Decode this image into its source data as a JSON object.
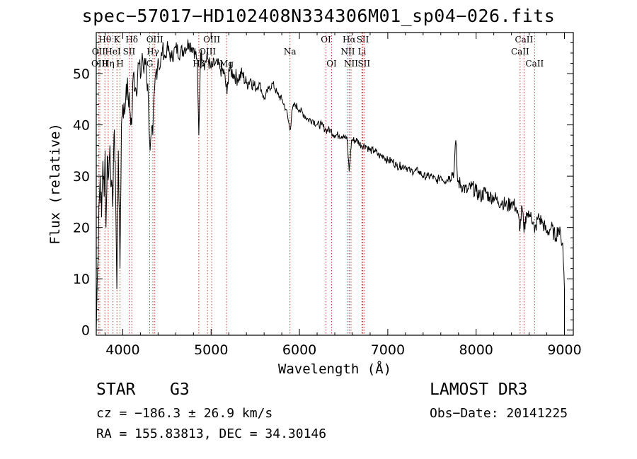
{
  "title": "spec−57017−HD102408N334306M01_sp04−026.fits",
  "info": {
    "class": "STAR",
    "subclass": "G3",
    "survey": "LAMOST DR3",
    "cz": "cz = −186.3 ± 26.9 km/s",
    "obsdate": "Obs−Date: 20141225",
    "radec": "RA = 155.83813, DEC =  34.30146"
  },
  "chart_data": {
    "type": "line",
    "title": "spec−57017−HD102408N334306M01_sp04−026.fits",
    "xlabel": "Wavelength (Å)",
    "ylabel": "Flux (relative)",
    "xlim": [
      3700,
      9100
    ],
    "ylim": [
      -1,
      58
    ],
    "xticks": [
      4000,
      5000,
      6000,
      7000,
      8000,
      9000
    ],
    "yticks": [
      0,
      10,
      20,
      30,
      40,
      50
    ],
    "series": [
      {
        "name": "flux",
        "points": [
          [
            3700,
            0
          ],
          [
            3715,
            12
          ],
          [
            3730,
            24
          ],
          [
            3745,
            30
          ],
          [
            3760,
            22
          ],
          [
            3775,
            33
          ],
          [
            3790,
            26
          ],
          [
            3800,
            35
          ],
          [
            3810,
            20
          ],
          [
            3825,
            34
          ],
          [
            3840,
            30
          ],
          [
            3855,
            36
          ],
          [
            3870,
            28
          ],
          [
            3885,
            24
          ],
          [
            3900,
            38
          ],
          [
            3915,
            33
          ],
          [
            3933,
            8
          ],
          [
            3950,
            35
          ],
          [
            3968,
            12
          ],
          [
            3985,
            40
          ],
          [
            4000,
            44
          ],
          [
            4020,
            42
          ],
          [
            4040,
            48
          ],
          [
            4060,
            46
          ],
          [
            4080,
            43
          ],
          [
            4101,
            40
          ],
          [
            4120,
            50
          ],
          [
            4150,
            47
          ],
          [
            4180,
            52
          ],
          [
            4200,
            49
          ],
          [
            4220,
            54
          ],
          [
            4240,
            50
          ],
          [
            4260,
            53
          ],
          [
            4290,
            45
          ],
          [
            4310,
            35
          ],
          [
            4340,
            38
          ],
          [
            4360,
            47
          ],
          [
            4380,
            51
          ],
          [
            4400,
            53
          ],
          [
            4420,
            51
          ],
          [
            4450,
            55
          ],
          [
            4480,
            53
          ],
          [
            4500,
            55
          ],
          [
            4550,
            53
          ],
          [
            4600,
            55
          ],
          [
            4650,
            54
          ],
          [
            4700,
            55
          ],
          [
            4750,
            56
          ],
          [
            4800,
            55
          ],
          [
            4840,
            53
          ],
          [
            4861,
            38
          ],
          [
            4880,
            54
          ],
          [
            4920,
            52
          ],
          [
            4960,
            53
          ],
          [
            5000,
            51
          ],
          [
            5050,
            52
          ],
          [
            5100,
            51
          ],
          [
            5150,
            50
          ],
          [
            5180,
            46
          ],
          [
            5200,
            51
          ],
          [
            5250,
            50
          ],
          [
            5300,
            49
          ],
          [
            5350,
            50
          ],
          [
            5400,
            48
          ],
          [
            5450,
            49
          ],
          [
            5500,
            47
          ],
          [
            5550,
            48
          ],
          [
            5600,
            45
          ],
          [
            5650,
            47
          ],
          [
            5700,
            48
          ],
          [
            5750,
            46
          ],
          [
            5800,
            45
          ],
          [
            5850,
            43
          ],
          [
            5893,
            39
          ],
          [
            5920,
            43
          ],
          [
            5950,
            44
          ],
          [
            6000,
            43
          ],
          [
            6050,
            42
          ],
          [
            6100,
            41
          ],
          [
            6150,
            41
          ],
          [
            6200,
            40
          ],
          [
            6250,
            40
          ],
          [
            6300,
            39
          ],
          [
            6350,
            39
          ],
          [
            6400,
            38
          ],
          [
            6450,
            38
          ],
          [
            6500,
            38
          ],
          [
            6540,
            37
          ],
          [
            6563,
            31
          ],
          [
            6590,
            37
          ],
          [
            6650,
            37
          ],
          [
            6700,
            36
          ],
          [
            6750,
            36
          ],
          [
            6800,
            35
          ],
          [
            6850,
            35
          ],
          [
            6900,
            34
          ],
          [
            6950,
            34
          ],
          [
            7000,
            33
          ],
          [
            7050,
            33
          ],
          [
            7100,
            32
          ],
          [
            7150,
            32
          ],
          [
            7200,
            32
          ],
          [
            7250,
            31
          ],
          [
            7300,
            31
          ],
          [
            7350,
            31
          ],
          [
            7400,
            30
          ],
          [
            7450,
            30
          ],
          [
            7500,
            30
          ],
          [
            7550,
            29
          ],
          [
            7600,
            30
          ],
          [
            7650,
            29
          ],
          [
            7700,
            30
          ],
          [
            7750,
            31
          ],
          [
            7770,
            37
          ],
          [
            7790,
            29
          ],
          [
            7850,
            28
          ],
          [
            7900,
            27
          ],
          [
            7950,
            28
          ],
          [
            8000,
            27
          ],
          [
            8050,
            26
          ],
          [
            8100,
            27
          ],
          [
            8150,
            26
          ],
          [
            8200,
            26
          ],
          [
            8250,
            25
          ],
          [
            8300,
            25
          ],
          [
            8350,
            24
          ],
          [
            8400,
            25
          ],
          [
            8450,
            24
          ],
          [
            8498,
            20
          ],
          [
            8520,
            24
          ],
          [
            8542,
            19
          ],
          [
            8570,
            23
          ],
          [
            8600,
            22
          ],
          [
            8620,
            23
          ],
          [
            8662,
            19
          ],
          [
            8700,
            22
          ],
          [
            8750,
            21
          ],
          [
            8800,
            19
          ],
          [
            8850,
            20
          ],
          [
            8900,
            18
          ],
          [
            8930,
            20
          ],
          [
            8960,
            18
          ],
          [
            8980,
            17
          ],
          [
            9000,
            8
          ]
        ]
      }
    ],
    "lines": [
      {
        "name": "Hθ",
        "w": 3798,
        "row": 0
      },
      {
        "name": "OII",
        "w": 3727,
        "row": 1
      },
      {
        "name": "OIII",
        "w": 3740,
        "row": 2
      },
      {
        "name": "K",
        "w": 3934,
        "row": 0
      },
      {
        "name": "HeI",
        "w": 3889,
        "row": 1
      },
      {
        "name": "Hη",
        "w": 3835,
        "row": 2
      },
      {
        "name": "H",
        "w": 3969,
        "row": 2
      },
      {
        "name": "Hδ",
        "w": 4102,
        "row": 0
      },
      {
        "name": "SII",
        "w": 4072,
        "row": 1
      },
      {
        "name": "OIII",
        "w": 4363,
        "row": 0
      },
      {
        "name": "Hγ",
        "w": 4341,
        "row": 1
      },
      {
        "name": "G",
        "w": 4305,
        "row": 2
      },
      {
        "name": "OIII",
        "w": 5007,
        "row": 0
      },
      {
        "name": "OIII",
        "w": 4959,
        "row": 1
      },
      {
        "name": "Hβ",
        "w": 4861,
        "row": 2
      },
      {
        "name": "Mg",
        "w": 5175,
        "row": 2
      },
      {
        "name": "Na",
        "w": 5893,
        "row": 1
      },
      {
        "name": "OI",
        "w": 6300,
        "row": 0
      },
      {
        "name": "OI",
        "w": 6364,
        "row": 2
      },
      {
        "name": "Hα",
        "w": 6563,
        "row": 0
      },
      {
        "name": "SII",
        "w": 6717,
        "row": 0
      },
      {
        "name": "NII",
        "w": 6548,
        "row": 1
      },
      {
        "name": "Li",
        "w": 6708,
        "row": 1
      },
      {
        "name": "NII",
        "w": 6584,
        "row": 2
      },
      {
        "name": "SII",
        "w": 6731,
        "row": 2
      },
      {
        "name": "CaII",
        "w": 8542,
        "row": 0
      },
      {
        "name": "CaII",
        "w": 8498,
        "row": 1
      },
      {
        "name": "CaII",
        "w": 8662,
        "row": 2
      }
    ]
  }
}
